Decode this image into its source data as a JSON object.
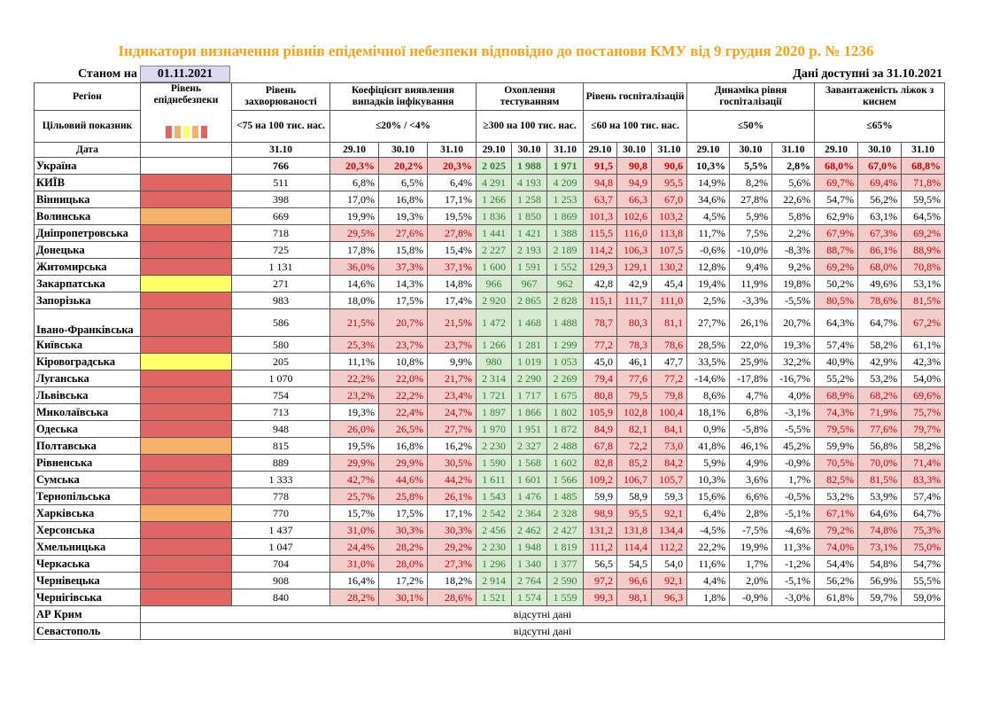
{
  "title": "Індикатори визначення рівнів епідемічної небезпеки відповідно до постанови КМУ від 9 грудня 2020 р. № 1236",
  "as_of_label": "Станом на",
  "as_of_date": "01.11.2021",
  "available_label": "Дані доступні за  31.10.2021",
  "headers": {
    "region": "Регіон",
    "target": "Цільовий показник",
    "date": "Дата",
    "level": "Рівень епіднебезпеки",
    "incidence": "Рівень захворюваності",
    "incidence_target": "<75 на 100 тис. нас.",
    "detection": "Коефіцієнт виявлення випадків інфікування",
    "detection_target": "≤20% / <4%",
    "testing": "Охоплення тестуванням",
    "testing_target": "≥300 на 100 тис. нас.",
    "hosp": "Рівень госпіталізацій",
    "hosp_target": "≤60 на 100 тис. нас.",
    "dyn": "Динаміка рівня госпіталізації",
    "dyn_target": "≤50%",
    "beds": "Завантаженість ліжок з киснем",
    "beds_target": "≤65%",
    "d_incidence": "31.10",
    "dates": [
      "29.10",
      "30.10",
      "31.10"
    ]
  },
  "swatch_colors": [
    "#e06666",
    "#f6b26b",
    "#ffff66",
    "#f6b26b",
    "#e06666"
  ],
  "level_colors": {
    "red": "#e06666",
    "orange": "#f6b26b",
    "yellow": "#ffff66"
  },
  "rows": [
    {
      "region": "Україна",
      "level": "",
      "inc": "766",
      "det": [
        "20,3%",
        "20,2%",
        "20,3%"
      ],
      "det_c": [
        "r",
        "r",
        "r"
      ],
      "test": [
        "2 025",
        "1 988",
        "1 971"
      ],
      "test_c": [
        "g",
        "g",
        "g"
      ],
      "hosp": [
        "91,5",
        "90,8",
        "90,6"
      ],
      "hosp_c": [
        "r",
        "r",
        "r"
      ],
      "dyn": [
        "10,3%",
        "5,5%",
        "2,8%"
      ],
      "beds": [
        "68,0%",
        "67,0%",
        "68,8%"
      ],
      "beds_c": [
        "r",
        "r",
        "r"
      ],
      "bold": true
    },
    {
      "region": "КИЇВ",
      "level": "red",
      "inc": "511",
      "det": [
        "6,8%",
        "6,5%",
        "6,4%"
      ],
      "det_c": [
        "",
        "",
        ""
      ],
      "test": [
        "4 291",
        "4 193",
        "4 209"
      ],
      "test_c": [
        "g",
        "g",
        "g"
      ],
      "hosp": [
        "94,8",
        "94,9",
        "95,5"
      ],
      "hosp_c": [
        "r",
        "r",
        "r"
      ],
      "dyn": [
        "14,9%",
        "8,2%",
        "5,6%"
      ],
      "beds": [
        "69,7%",
        "69,4%",
        "71,8%"
      ],
      "beds_c": [
        "r",
        "r",
        "r"
      ]
    },
    {
      "region": "Вінницька",
      "level": "red",
      "inc": "398",
      "det": [
        "17,0%",
        "16,8%",
        "17,1%"
      ],
      "det_c": [
        "",
        "",
        ""
      ],
      "test": [
        "1 266",
        "1 258",
        "1 253"
      ],
      "test_c": [
        "g",
        "g",
        "g"
      ],
      "hosp": [
        "63,7",
        "66,3",
        "67,0"
      ],
      "hosp_c": [
        "r",
        "r",
        "r"
      ],
      "dyn": [
        "34,6%",
        "27,8%",
        "22,6%"
      ],
      "beds": [
        "54,7%",
        "56,2%",
        "59,5%"
      ],
      "beds_c": [
        "",
        "",
        ""
      ]
    },
    {
      "region": "Волинська",
      "level": "orange",
      "inc": "669",
      "det": [
        "19,9%",
        "19,3%",
        "19,5%"
      ],
      "det_c": [
        "",
        "",
        ""
      ],
      "test": [
        "1 836",
        "1 850",
        "1 869"
      ],
      "test_c": [
        "g",
        "g",
        "g"
      ],
      "hosp": [
        "101,3",
        "102,6",
        "103,2"
      ],
      "hosp_c": [
        "r",
        "r",
        "r"
      ],
      "dyn": [
        "4,5%",
        "5,9%",
        "5,8%"
      ],
      "beds": [
        "62,9%",
        "63,1%",
        "64,5%"
      ],
      "beds_c": [
        "",
        "",
        ""
      ]
    },
    {
      "region": "Дніпропетровська",
      "level": "red",
      "inc": "718",
      "det": [
        "29,5%",
        "27,6%",
        "27,8%"
      ],
      "det_c": [
        "r",
        "r",
        "r"
      ],
      "test": [
        "1 441",
        "1 421",
        "1 388"
      ],
      "test_c": [
        "g",
        "g",
        "g"
      ],
      "hosp": [
        "115,5",
        "116,0",
        "113,8"
      ],
      "hosp_c": [
        "r",
        "r",
        "r"
      ],
      "dyn": [
        "11,7%",
        "7,5%",
        "2,2%"
      ],
      "beds": [
        "67,9%",
        "67,3%",
        "69,2%"
      ],
      "beds_c": [
        "r",
        "r",
        "r"
      ]
    },
    {
      "region": "Донецька",
      "level": "red",
      "inc": "725",
      "det": [
        "17,8%",
        "15,8%",
        "15,4%"
      ],
      "det_c": [
        "",
        "",
        ""
      ],
      "test": [
        "2 227",
        "2 193",
        "2 189"
      ],
      "test_c": [
        "g",
        "g",
        "g"
      ],
      "hosp": [
        "114,2",
        "106,3",
        "107,5"
      ],
      "hosp_c": [
        "r",
        "r",
        "r"
      ],
      "dyn": [
        "-0,6%",
        "-10,0%",
        "-8,3%"
      ],
      "beds": [
        "88,7%",
        "86,1%",
        "88,9%"
      ],
      "beds_c": [
        "r",
        "r",
        "r"
      ]
    },
    {
      "region": "Житомирська",
      "level": "red",
      "inc": "1 131",
      "det": [
        "36,0%",
        "37,3%",
        "37,1%"
      ],
      "det_c": [
        "r",
        "r",
        "r"
      ],
      "test": [
        "1 600",
        "1 591",
        "1 552"
      ],
      "test_c": [
        "g",
        "g",
        "g"
      ],
      "hosp": [
        "129,3",
        "129,1",
        "130,2"
      ],
      "hosp_c": [
        "r",
        "r",
        "r"
      ],
      "dyn": [
        "12,8%",
        "9,4%",
        "9,2%"
      ],
      "beds": [
        "69,2%",
        "68,0%",
        "70,8%"
      ],
      "beds_c": [
        "r",
        "r",
        "r"
      ]
    },
    {
      "region": "Закарпатська",
      "level": "yellow",
      "inc": "271",
      "det": [
        "14,6%",
        "14,3%",
        "14,8%"
      ],
      "det_c": [
        "",
        "",
        ""
      ],
      "test": [
        "966",
        "967",
        "962"
      ],
      "test_c": [
        "g",
        "g",
        "g"
      ],
      "hosp": [
        "42,8",
        "42,9",
        "45,4"
      ],
      "hosp_c": [
        "",
        "",
        ""
      ],
      "dyn": [
        "19,4%",
        "11,9%",
        "19,8%"
      ],
      "beds": [
        "50,2%",
        "49,6%",
        "53,1%"
      ],
      "beds_c": [
        "",
        "",
        ""
      ]
    },
    {
      "region": "Запорізька",
      "level": "red",
      "inc": "983",
      "det": [
        "18,0%",
        "17,5%",
        "17,4%"
      ],
      "det_c": [
        "",
        "",
        ""
      ],
      "test": [
        "2 920",
        "2 865",
        "2 828"
      ],
      "test_c": [
        "g",
        "g",
        "g"
      ],
      "hosp": [
        "115,1",
        "111,7",
        "111,0"
      ],
      "hosp_c": [
        "r",
        "r",
        "r"
      ],
      "dyn": [
        "2,5%",
        "-3,3%",
        "-5,5%"
      ],
      "beds": [
        "80,5%",
        "78,6%",
        "81,5%"
      ],
      "beds_c": [
        "r",
        "r",
        "r"
      ]
    },
    {
      "region": "Івано-Франківська",
      "level": "red",
      "inc": "586",
      "det": [
        "21,5%",
        "20,7%",
        "21,5%"
      ],
      "det_c": [
        "r",
        "r",
        "r"
      ],
      "test": [
        "1 472",
        "1 468",
        "1 488"
      ],
      "test_c": [
        "g",
        "g",
        "g"
      ],
      "hosp": [
        "78,7",
        "80,3",
        "81,1"
      ],
      "hosp_c": [
        "r",
        "r",
        "r"
      ],
      "dyn": [
        "27,7%",
        "26,1%",
        "20,7%"
      ],
      "beds": [
        "64,3%",
        "64,7%",
        "67,2%"
      ],
      "beds_c": [
        "",
        "",
        "r"
      ],
      "tall": true
    },
    {
      "region": "Київська",
      "level": "red",
      "inc": "580",
      "det": [
        "25,3%",
        "23,7%",
        "23,7%"
      ],
      "det_c": [
        "r",
        "r",
        "r"
      ],
      "test": [
        "1 266",
        "1 281",
        "1 299"
      ],
      "test_c": [
        "g",
        "g",
        "g"
      ],
      "hosp": [
        "77,2",
        "78,3",
        "78,6"
      ],
      "hosp_c": [
        "r",
        "r",
        "r"
      ],
      "dyn": [
        "28,5%",
        "22,0%",
        "19,3%"
      ],
      "beds": [
        "57,4%",
        "58,2%",
        "61,1%"
      ],
      "beds_c": [
        "",
        "",
        ""
      ]
    },
    {
      "region": "Кіровоградська",
      "level": "yellow",
      "inc": "205",
      "det": [
        "11,1%",
        "10,8%",
        "9,9%"
      ],
      "det_c": [
        "",
        "",
        ""
      ],
      "test": [
        "980",
        "1 019",
        "1 053"
      ],
      "test_c": [
        "g",
        "g",
        "g"
      ],
      "hosp": [
        "45,0",
        "46,1",
        "47,7"
      ],
      "hosp_c": [
        "",
        "",
        ""
      ],
      "dyn": [
        "33,5%",
        "25,9%",
        "32,2%"
      ],
      "beds": [
        "40,9%",
        "42,9%",
        "42,3%"
      ],
      "beds_c": [
        "",
        "",
        ""
      ]
    },
    {
      "region": "Луганська",
      "level": "red",
      "inc": "1 070",
      "det": [
        "22,2%",
        "22,0%",
        "21,7%"
      ],
      "det_c": [
        "r",
        "r",
        "r"
      ],
      "test": [
        "2 314",
        "2 290",
        "2 269"
      ],
      "test_c": [
        "g",
        "g",
        "g"
      ],
      "hosp": [
        "79,4",
        "77,6",
        "77,2"
      ],
      "hosp_c": [
        "r",
        "r",
        "r"
      ],
      "dyn": [
        "-14,6%",
        "-17,8%",
        "-16,7%"
      ],
      "beds": [
        "55,2%",
        "53,2%",
        "54,0%"
      ],
      "beds_c": [
        "",
        "",
        ""
      ]
    },
    {
      "region": "Львівська",
      "level": "red",
      "inc": "754",
      "det": [
        "23,2%",
        "22,2%",
        "23,4%"
      ],
      "det_c": [
        "r",
        "r",
        "r"
      ],
      "test": [
        "1 721",
        "1 717",
        "1 675"
      ],
      "test_c": [
        "g",
        "g",
        "g"
      ],
      "hosp": [
        "80,8",
        "79,5",
        "79,8"
      ],
      "hosp_c": [
        "r",
        "r",
        "r"
      ],
      "dyn": [
        "8,6%",
        "4,7%",
        "4,0%"
      ],
      "beds": [
        "68,9%",
        "68,2%",
        "69,6%"
      ],
      "beds_c": [
        "r",
        "r",
        "r"
      ]
    },
    {
      "region": "Миколаївська",
      "level": "red",
      "inc": "713",
      "det": [
        "19,3%",
        "22,4%",
        "24,7%"
      ],
      "det_c": [
        "",
        "r",
        "r"
      ],
      "test": [
        "1 897",
        "1 866",
        "1 802"
      ],
      "test_c": [
        "g",
        "g",
        "g"
      ],
      "hosp": [
        "105,9",
        "102,8",
        "100,4"
      ],
      "hosp_c": [
        "r",
        "r",
        "r"
      ],
      "dyn": [
        "18,1%",
        "6,8%",
        "-3,1%"
      ],
      "beds": [
        "74,3%",
        "71,9%",
        "75,7%"
      ],
      "beds_c": [
        "r",
        "r",
        "r"
      ]
    },
    {
      "region": "Одеська",
      "level": "red",
      "inc": "948",
      "det": [
        "26,0%",
        "26,5%",
        "27,7%"
      ],
      "det_c": [
        "r",
        "r",
        "r"
      ],
      "test": [
        "1 970",
        "1 951",
        "1 872"
      ],
      "test_c": [
        "g",
        "g",
        "g"
      ],
      "hosp": [
        "84,9",
        "82,1",
        "84,1"
      ],
      "hosp_c": [
        "r",
        "r",
        "r"
      ],
      "dyn": [
        "0,9%",
        "-5,8%",
        "-5,5%"
      ],
      "beds": [
        "79,5%",
        "77,6%",
        "79,7%"
      ],
      "beds_c": [
        "r",
        "r",
        "r"
      ]
    },
    {
      "region": "Полтавська",
      "level": "orange",
      "inc": "815",
      "det": [
        "19,5%",
        "16,8%",
        "16,2%"
      ],
      "det_c": [
        "",
        "",
        ""
      ],
      "test": [
        "2 230",
        "2 327",
        "2 488"
      ],
      "test_c": [
        "g",
        "g",
        "g"
      ],
      "hosp": [
        "67,8",
        "72,2",
        "73,0"
      ],
      "hosp_c": [
        "r",
        "r",
        "r"
      ],
      "dyn": [
        "41,8%",
        "46,1%",
        "45,2%"
      ],
      "beds": [
        "59,9%",
        "56,8%",
        "58,2%"
      ],
      "beds_c": [
        "",
        "",
        ""
      ]
    },
    {
      "region": "Рівненська",
      "level": "red",
      "inc": "889",
      "det": [
        "29,9%",
        "29,9%",
        "30,5%"
      ],
      "det_c": [
        "r",
        "r",
        "r"
      ],
      "test": [
        "1 590",
        "1 568",
        "1 602"
      ],
      "test_c": [
        "g",
        "g",
        "g"
      ],
      "hosp": [
        "82,8",
        "85,2",
        "84,2"
      ],
      "hosp_c": [
        "r",
        "r",
        "r"
      ],
      "dyn": [
        "5,9%",
        "4,9%",
        "-0,9%"
      ],
      "beds": [
        "70,5%",
        "70,0%",
        "71,4%"
      ],
      "beds_c": [
        "r",
        "r",
        "r"
      ]
    },
    {
      "region": "Сумська",
      "level": "red",
      "inc": "1 333",
      "det": [
        "42,7%",
        "44,6%",
        "44,2%"
      ],
      "det_c": [
        "r",
        "r",
        "r"
      ],
      "test": [
        "1 611",
        "1 601",
        "1 566"
      ],
      "test_c": [
        "g",
        "g",
        "g"
      ],
      "hosp": [
        "109,2",
        "106,7",
        "105,7"
      ],
      "hosp_c": [
        "r",
        "r",
        "r"
      ],
      "dyn": [
        "10,3%",
        "3,6%",
        "1,7%"
      ],
      "beds": [
        "82,5%",
        "81,5%",
        "83,3%"
      ],
      "beds_c": [
        "r",
        "r",
        "r"
      ]
    },
    {
      "region": "Тернопільська",
      "level": "red",
      "inc": "778",
      "det": [
        "25,7%",
        "25,8%",
        "26,1%"
      ],
      "det_c": [
        "r",
        "r",
        "r"
      ],
      "test": [
        "1 543",
        "1 476",
        "1 485"
      ],
      "test_c": [
        "g",
        "g",
        "g"
      ],
      "hosp": [
        "59,9",
        "58,9",
        "59,3"
      ],
      "hosp_c": [
        "",
        "",
        ""
      ],
      "dyn": [
        "15,6%",
        "6,6%",
        "-0,5%"
      ],
      "beds": [
        "53,2%",
        "53,9%",
        "57,4%"
      ],
      "beds_c": [
        "",
        "",
        ""
      ]
    },
    {
      "region": "Харківська",
      "level": "orange",
      "inc": "770",
      "det": [
        "15,7%",
        "17,5%",
        "17,1%"
      ],
      "det_c": [
        "",
        "",
        ""
      ],
      "test": [
        "2 542",
        "2 364",
        "2 328"
      ],
      "test_c": [
        "g",
        "g",
        "g"
      ],
      "hosp": [
        "98,9",
        "95,5",
        "92,1"
      ],
      "hosp_c": [
        "r",
        "r",
        "r"
      ],
      "dyn": [
        "6,4%",
        "2,8%",
        "-5,1%"
      ],
      "beds": [
        "67,1%",
        "64,6%",
        "64,7%"
      ],
      "beds_c": [
        "r",
        "",
        ""
      ]
    },
    {
      "region": "Херсонська",
      "level": "red",
      "inc": "1 437",
      "det": [
        "31,0%",
        "30,3%",
        "30,3%"
      ],
      "det_c": [
        "r",
        "r",
        "r"
      ],
      "test": [
        "2 456",
        "2 462",
        "2 427"
      ],
      "test_c": [
        "g",
        "g",
        "g"
      ],
      "hosp": [
        "131,2",
        "131,8",
        "134,4"
      ],
      "hosp_c": [
        "r",
        "r",
        "r"
      ],
      "dyn": [
        "-4,5%",
        "-7,5%",
        "-4,6%"
      ],
      "beds": [
        "79,2%",
        "74,8%",
        "75,3%"
      ],
      "beds_c": [
        "r",
        "r",
        "r"
      ]
    },
    {
      "region": "Хмельницька",
      "level": "red",
      "inc": "1 047",
      "det": [
        "24,4%",
        "28,2%",
        "29,2%"
      ],
      "det_c": [
        "r",
        "r",
        "r"
      ],
      "test": [
        "2 230",
        "1 948",
        "1 819"
      ],
      "test_c": [
        "g",
        "g",
        "g"
      ],
      "hosp": [
        "111,2",
        "114,4",
        "112,2"
      ],
      "hosp_c": [
        "r",
        "r",
        "r"
      ],
      "dyn": [
        "22,2%",
        "19,9%",
        "11,3%"
      ],
      "beds": [
        "74,0%",
        "73,1%",
        "75,0%"
      ],
      "beds_c": [
        "r",
        "r",
        "r"
      ]
    },
    {
      "region": "Черкаська",
      "level": "red",
      "inc": "704",
      "det": [
        "31,0%",
        "28,0%",
        "27,3%"
      ],
      "det_c": [
        "r",
        "r",
        "r"
      ],
      "test": [
        "1 296",
        "1 340",
        "1 377"
      ],
      "test_c": [
        "g",
        "g",
        "g"
      ],
      "hosp": [
        "56,5",
        "54,5",
        "54,0"
      ],
      "hosp_c": [
        "",
        "",
        ""
      ],
      "dyn": [
        "11,6%",
        "1,7%",
        "-1,2%"
      ],
      "beds": [
        "54,4%",
        "54,8%",
        "54,7%"
      ],
      "beds_c": [
        "",
        "",
        ""
      ]
    },
    {
      "region": "Чернівецька",
      "level": "red",
      "inc": "908",
      "det": [
        "16,4%",
        "17,2%",
        "18,2%"
      ],
      "det_c": [
        "",
        "",
        ""
      ],
      "test": [
        "2 914",
        "2 764",
        "2 590"
      ],
      "test_c": [
        "g",
        "g",
        "g"
      ],
      "hosp": [
        "97,2",
        "96,6",
        "92,1"
      ],
      "hosp_c": [
        "r",
        "r",
        "r"
      ],
      "dyn": [
        "4,4%",
        "2,0%",
        "-5,1%"
      ],
      "beds": [
        "56,2%",
        "56,9%",
        "55,5%"
      ],
      "beds_c": [
        "",
        "",
        ""
      ]
    },
    {
      "region": "Чернігівська",
      "level": "red",
      "inc": "840",
      "det": [
        "28,2%",
        "30,1%",
        "28,6%"
      ],
      "det_c": [
        "r",
        "r",
        "r"
      ],
      "test": [
        "1 521",
        "1 574",
        "1 559"
      ],
      "test_c": [
        "g",
        "g",
        "g"
      ],
      "hosp": [
        "99,3",
        "98,1",
        "96,3"
      ],
      "hosp_c": [
        "r",
        "r",
        "r"
      ],
      "dyn": [
        "1,8%",
        "-0,9%",
        "-3,0%"
      ],
      "beds": [
        "61,8%",
        "59,7%",
        "59,0%"
      ],
      "beds_c": [
        "",
        "",
        ""
      ]
    }
  ],
  "no_data_rows": [
    {
      "region": "АР Крим",
      "text": "відсутні дані"
    },
    {
      "region": "Севастополь",
      "text": "відсутні дані"
    }
  ]
}
